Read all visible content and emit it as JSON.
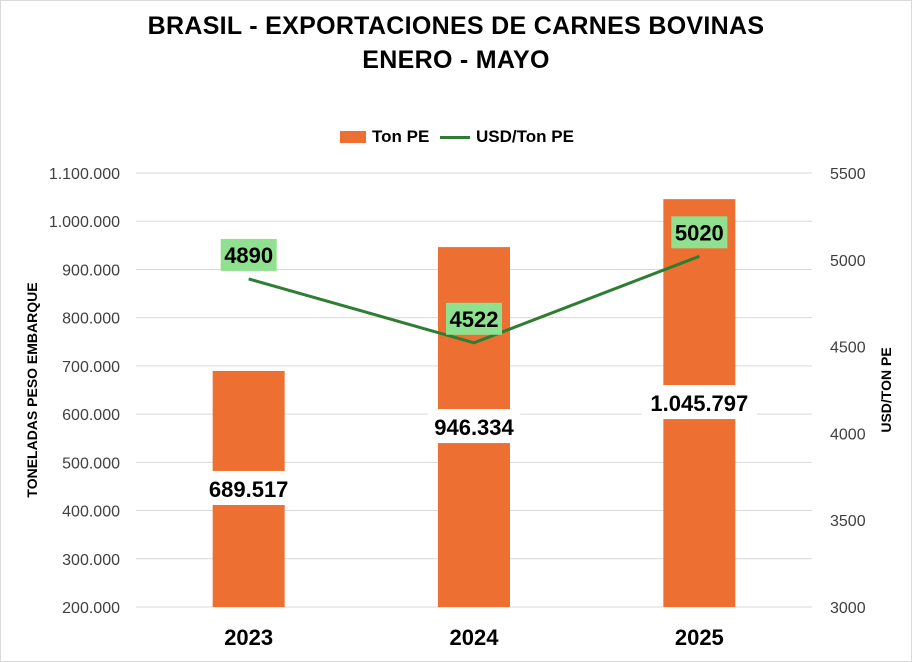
{
  "chart_data": {
    "type": "bar",
    "title": "BRASIL - EXPORTACIONES DE CARNES BOVINAS",
    "subtitle": "ENERO - MAYO",
    "categories": [
      "2023",
      "2024",
      "2025"
    ],
    "series": [
      {
        "name": "Ton PE",
        "type": "bar",
        "axis": "left",
        "values": [
          689517,
          946334,
          1045797
        ],
        "labels": [
          "689.517",
          "946.334",
          "1.045.797"
        ],
        "color": "#ed7032"
      },
      {
        "name": "USD/Ton PE",
        "type": "line",
        "axis": "right",
        "values": [
          4890,
          4522,
          5020
        ],
        "labels": [
          "4890",
          "4522",
          "5020"
        ],
        "color": "#2e7d32",
        "label_bg": "#8fe08f"
      }
    ],
    "ylabel": "TONELADAS PESO EMBARQUE",
    "y2label": "USD/TON PE",
    "ylim": [
      200000,
      1100000
    ],
    "y2lim": [
      3000,
      5500
    ],
    "yticks": [
      200000,
      300000,
      400000,
      500000,
      600000,
      700000,
      800000,
      900000,
      1000000,
      1100000
    ],
    "ytick_labels": [
      "200.000",
      "300.000",
      "400.000",
      "500.000",
      "600.000",
      "700.000",
      "800.000",
      "900.000",
      "1.000.000",
      "1.100.000"
    ],
    "y2ticks": [
      3000,
      3500,
      4000,
      4500,
      5000,
      5500
    ],
    "y2tick_labels": [
      "3000",
      "3500",
      "4000",
      "4500",
      "5000",
      "5500"
    ],
    "grid": true,
    "legend": "top-center",
    "label_color": "#000000"
  }
}
